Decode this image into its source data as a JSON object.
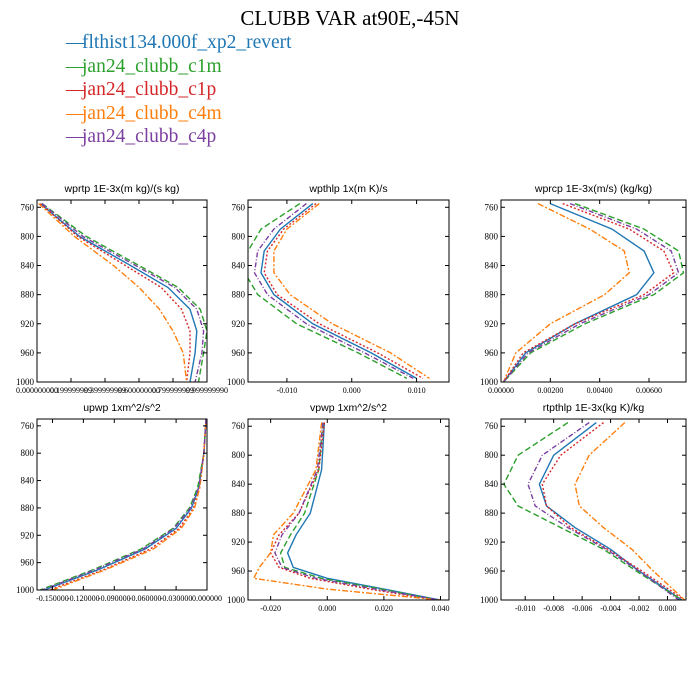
{
  "title": "CLUBB VAR at90E,-45N",
  "legend": [
    {
      "name": "flthist134.000f_xp2_revert",
      "color": "#1f77b4",
      "dash": "solid"
    },
    {
      "name": "jan24_clubb_c1m",
      "color": "#2ca02c",
      "dash": "6,3"
    },
    {
      "name": "jan24_clubb_c1p",
      "color": "#d62728",
      "dash": "2,2"
    },
    {
      "name": "jan24_clubb_c4m",
      "color": "#ff7f0e",
      "dash": "6,2,2,2"
    },
    {
      "name": "jan24_clubb_c4p",
      "color": "#7b3fa0",
      "dash": "5,2,1,2"
    }
  ],
  "chart_data": [
    {
      "type": "line",
      "title": "wprtp   1E-3x(m kg)/(s kg)",
      "ylim": [
        1000,
        750
      ],
      "yticks": [
        760,
        800,
        840,
        880,
        920,
        960,
        1000
      ],
      "xlim": [
        0,
        1
      ],
      "xticks": [
        0.0,
        0.2,
        0.4,
        0.6,
        0.8,
        1.0
      ],
      "xtick_labels": [
        "0.000000000",
        "0.199999999",
        "0.399999999",
        "0.600000000",
        "0.799999999",
        "0.999999990"
      ],
      "series": [
        {
          "name": "flthist134.000f_xp2_revert",
          "y": [
            755,
            800,
            840,
            870,
            900,
            930,
            960,
            1000
          ],
          "x": [
            0.02,
            0.25,
            0.55,
            0.77,
            0.9,
            0.94,
            0.93,
            0.9
          ]
        },
        {
          "name": "jan24_clubb_c1m",
          "y": [
            755,
            800,
            840,
            870,
            900,
            930,
            960,
            1000
          ],
          "x": [
            0.03,
            0.29,
            0.6,
            0.83,
            0.96,
            1.0,
            0.98,
            0.95
          ]
        },
        {
          "name": "jan24_clubb_c1p",
          "y": [
            755,
            800,
            840,
            870,
            900,
            930,
            960,
            1000
          ],
          "x": [
            0.02,
            0.24,
            0.52,
            0.73,
            0.85,
            0.9,
            0.9,
            0.88
          ]
        },
        {
          "name": "jan24_clubb_c4m",
          "y": [
            755,
            800,
            840,
            870,
            900,
            930,
            960,
            1000
          ],
          "x": [
            0.01,
            0.22,
            0.45,
            0.6,
            0.72,
            0.8,
            0.86,
            0.88
          ]
        },
        {
          "name": "jan24_clubb_c4p",
          "y": [
            755,
            800,
            840,
            870,
            900,
            930,
            960,
            1000
          ],
          "x": [
            0.03,
            0.27,
            0.58,
            0.81,
            0.94,
            0.98,
            0.97,
            0.93
          ]
        }
      ]
    },
    {
      "type": "line",
      "title": "wpthlp   1x(m K)/s",
      "ylim": [
        1000,
        750
      ],
      "yticks": [
        760,
        800,
        840,
        880,
        920,
        960,
        1000
      ],
      "xlim": [
        -0.016,
        0.015
      ],
      "xticks": [
        -0.01,
        0.0,
        0.01
      ],
      "xtick_labels": [
        "-0.010",
        "0.000",
        "0.010"
      ],
      "series": [
        {
          "name": "flthist134.000f_xp2_revert",
          "y": [
            755,
            790,
            820,
            850,
            880,
            920,
            960,
            995
          ],
          "x": [
            -0.006,
            -0.011,
            -0.0135,
            -0.014,
            -0.012,
            -0.006,
            0.003,
            0.01
          ]
        },
        {
          "name": "jan24_clubb_c1m",
          "y": [
            755,
            790,
            820,
            850,
            880,
            920,
            960,
            995
          ],
          "x": [
            -0.008,
            -0.014,
            -0.016,
            -0.0165,
            -0.0145,
            -0.0085,
            0.001,
            0.0085
          ]
        },
        {
          "name": "jan24_clubb_c1p",
          "y": [
            755,
            790,
            820,
            850,
            880,
            920,
            960,
            995
          ],
          "x": [
            -0.0055,
            -0.0105,
            -0.013,
            -0.0135,
            -0.0115,
            -0.005,
            0.004,
            0.011
          ]
        },
        {
          "name": "jan24_clubb_c4m",
          "y": [
            755,
            790,
            820,
            850,
            880,
            920,
            960,
            995
          ],
          "x": [
            -0.005,
            -0.01,
            -0.012,
            -0.012,
            -0.0095,
            -0.003,
            0.006,
            0.012
          ]
        },
        {
          "name": "jan24_clubb_c4p",
          "y": [
            755,
            790,
            820,
            850,
            880,
            920,
            960,
            995
          ],
          "x": [
            -0.007,
            -0.012,
            -0.0145,
            -0.015,
            -0.013,
            -0.007,
            0.002,
            0.0095
          ]
        }
      ]
    },
    {
      "type": "line",
      "title": "wprcp   1E-3x(m/s) (kg/kg)",
      "ylim": [
        1000,
        750
      ],
      "yticks": [
        760,
        800,
        840,
        880,
        920,
        960,
        1000
      ],
      "xlim": [
        0,
        0.0075
      ],
      "xticks": [
        0.0,
        0.002,
        0.004,
        0.006
      ],
      "xtick_labels": [
        "0.00000",
        "0.00200",
        "0.00400",
        "0.00600"
      ],
      "series": [
        {
          "name": "flthist134.000f_xp2_revert",
          "y": [
            755,
            790,
            820,
            850,
            880,
            920,
            960,
            1000
          ],
          "x": [
            0.002,
            0.0045,
            0.0058,
            0.0062,
            0.0055,
            0.003,
            0.001,
            0.0001
          ]
        },
        {
          "name": "jan24_clubb_c1m",
          "y": [
            755,
            790,
            820,
            850,
            880,
            920,
            960,
            1000
          ],
          "x": [
            0.003,
            0.0058,
            0.0072,
            0.0074,
            0.0062,
            0.0034,
            0.0012,
            0.0001
          ]
        },
        {
          "name": "jan24_clubb_c1p",
          "y": [
            755,
            790,
            820,
            850,
            880,
            920,
            960,
            1000
          ],
          "x": [
            0.0025,
            0.0052,
            0.0066,
            0.007,
            0.0058,
            0.003,
            0.0009,
            0.0001
          ]
        },
        {
          "name": "jan24_clubb_c4m",
          "y": [
            755,
            790,
            820,
            850,
            880,
            920,
            960,
            1000
          ],
          "x": [
            0.0015,
            0.0036,
            0.005,
            0.0052,
            0.0042,
            0.002,
            0.0006,
            0.0001
          ]
        },
        {
          "name": "jan24_clubb_c4p",
          "y": [
            755,
            790,
            820,
            850,
            880,
            920,
            960,
            1000
          ],
          "x": [
            0.0028,
            0.0055,
            0.0069,
            0.0072,
            0.006,
            0.0032,
            0.0011,
            0.0001
          ]
        }
      ]
    },
    {
      "type": "line",
      "title": "upwp   1xm^2/s^2",
      "ylim": [
        1000,
        750
      ],
      "yticks": [
        760,
        800,
        840,
        880,
        920,
        960,
        1000
      ],
      "xlim": [
        -0.165,
        0.0
      ],
      "xticks": [
        -0.15,
        -0.12,
        -0.09,
        -0.06,
        -0.03,
        0.0
      ],
      "xtick_labels": [
        "-0.150000",
        "-0.120000",
        "-0.090000",
        "-0.060000",
        "-0.030000",
        "0.000000"
      ],
      "series": [
        {
          "name": "flthist134.000f_xp2_revert",
          "y": [
            750,
            800,
            850,
            880,
            910,
            940,
            970,
            1000
          ],
          "x": [
            -0.001,
            -0.003,
            -0.008,
            -0.015,
            -0.03,
            -0.06,
            -0.105,
            -0.158
          ]
        },
        {
          "name": "jan24_clubb_c1m",
          "y": [
            750,
            800,
            850,
            880,
            910,
            940,
            970,
            1000
          ],
          "x": [
            -0.001,
            -0.003,
            -0.009,
            -0.017,
            -0.033,
            -0.064,
            -0.11,
            -0.162
          ]
        },
        {
          "name": "jan24_clubb_c1p",
          "y": [
            750,
            800,
            850,
            880,
            910,
            940,
            970,
            1000
          ],
          "x": [
            -0.001,
            -0.003,
            -0.007,
            -0.013,
            -0.027,
            -0.055,
            -0.1,
            -0.153
          ]
        },
        {
          "name": "jan24_clubb_c4m",
          "y": [
            750,
            800,
            850,
            880,
            910,
            940,
            970,
            1000
          ],
          "x": [
            -0.001,
            -0.003,
            -0.007,
            -0.012,
            -0.025,
            -0.052,
            -0.098,
            -0.15
          ]
        },
        {
          "name": "jan24_clubb_c4p",
          "y": [
            750,
            800,
            850,
            880,
            910,
            940,
            970,
            1000
          ],
          "x": [
            -0.001,
            -0.003,
            -0.008,
            -0.016,
            -0.032,
            -0.062,
            -0.108,
            -0.16
          ]
        }
      ]
    },
    {
      "type": "line",
      "title": "vpwp   1xm^2/s^2",
      "ylim": [
        1000,
        750
      ],
      "yticks": [
        760,
        800,
        840,
        880,
        920,
        960,
        1000
      ],
      "xlim": [
        -0.028,
        0.043
      ],
      "xticks": [
        -0.02,
        0.0,
        0.02,
        0.04
      ],
      "xtick_labels": [
        "-0.020",
        "0.000",
        "0.020",
        "0.040"
      ],
      "series": [
        {
          "name": "flthist134.000f_xp2_revert",
          "y": [
            755,
            820,
            880,
            910,
            935,
            955,
            970,
            985,
            1000
          ],
          "x": [
            -0.001,
            -0.002,
            -0.006,
            -0.011,
            -0.014,
            -0.012,
            0.0,
            0.02,
            0.04
          ]
        },
        {
          "name": "jan24_clubb_c1m",
          "y": [
            755,
            820,
            880,
            910,
            935,
            955,
            970,
            985,
            1000
          ],
          "x": [
            -0.0015,
            -0.003,
            -0.008,
            -0.013,
            -0.0165,
            -0.015,
            -0.002,
            0.019,
            0.039
          ]
        },
        {
          "name": "jan24_clubb_c1p",
          "y": [
            755,
            820,
            880,
            910,
            935,
            955,
            970,
            985,
            1000
          ],
          "x": [
            -0.001,
            -0.003,
            -0.01,
            -0.017,
            -0.02,
            -0.017,
            -0.006,
            0.015,
            0.038
          ]
        },
        {
          "name": "jan24_clubb_c4m",
          "y": [
            755,
            820,
            880,
            910,
            935,
            955,
            970,
            985,
            1000
          ],
          "x": [
            -0.002,
            -0.004,
            -0.012,
            -0.019,
            -0.02,
            -0.024,
            -0.026,
            0.0,
            0.04
          ]
        },
        {
          "name": "jan24_clubb_c4p",
          "y": [
            755,
            820,
            880,
            910,
            935,
            955,
            970,
            985,
            1000
          ],
          "x": [
            -0.0015,
            -0.0035,
            -0.01,
            -0.016,
            -0.0185,
            -0.016,
            -0.004,
            0.017,
            0.0395
          ]
        }
      ]
    },
    {
      "type": "line",
      "title": "rtpthlp   1E-3x(kg K)/kg",
      "ylim": [
        1000,
        750
      ],
      "yticks": [
        760,
        800,
        840,
        880,
        920,
        960,
        1000
      ],
      "xlim": [
        -0.0117,
        0.0013
      ],
      "xticks": [
        -0.01,
        -0.008,
        -0.006,
        -0.004,
        -0.002,
        0.0
      ],
      "xtick_labels": [
        "-0.010",
        "-0.008",
        "-0.006",
        "-0.004",
        "-0.002",
        "0.000"
      ],
      "series": [
        {
          "name": "flthist134.000f_xp2_revert",
          "y": [
            755,
            800,
            840,
            870,
            900,
            930,
            960,
            1000
          ],
          "x": [
            -0.005,
            -0.008,
            -0.009,
            -0.0085,
            -0.0065,
            -0.004,
            -0.002,
            0.001
          ]
        },
        {
          "name": "jan24_clubb_c1m",
          "y": [
            755,
            800,
            840,
            870,
            900,
            930,
            960,
            1000
          ],
          "x": [
            -0.007,
            -0.0105,
            -0.0115,
            -0.0105,
            -0.0075,
            -0.0045,
            -0.0022,
            0.001
          ]
        },
        {
          "name": "jan24_clubb_c1p",
          "y": [
            755,
            800,
            840,
            870,
            900,
            930,
            960,
            1000
          ],
          "x": [
            -0.0045,
            -0.0075,
            -0.0088,
            -0.0085,
            -0.0068,
            -0.0042,
            -0.0018,
            0.0012
          ]
        },
        {
          "name": "jan24_clubb_c4m",
          "y": [
            755,
            800,
            840,
            870,
            900,
            930,
            960,
            1000
          ],
          "x": [
            -0.003,
            -0.0055,
            -0.0065,
            -0.0062,
            -0.0045,
            -0.0025,
            -0.001,
            0.0012
          ]
        },
        {
          "name": "jan24_clubb_c4p",
          "y": [
            755,
            800,
            840,
            870,
            900,
            930,
            960,
            1000
          ],
          "x": [
            -0.0055,
            -0.0088,
            -0.0098,
            -0.0093,
            -0.007,
            -0.0043,
            -0.002,
            0.0008
          ]
        }
      ]
    }
  ]
}
